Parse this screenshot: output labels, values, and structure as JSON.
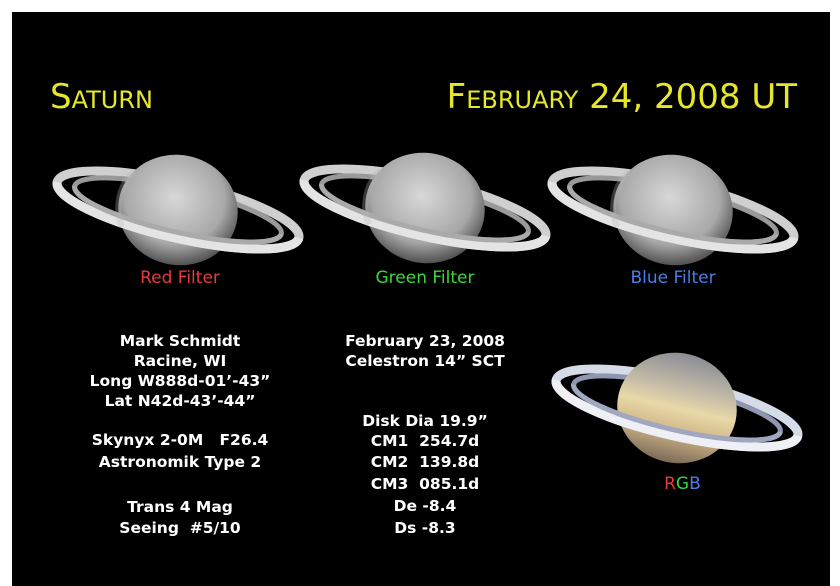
{
  "header": {
    "title": "Saturn",
    "date": "February 24, 2008 UT"
  },
  "filters": [
    "Red Filter",
    "Green Filter",
    "Blue Filter"
  ],
  "rgb_label": [
    "R",
    "G",
    "B"
  ],
  "observer": [
    "Mark Schmidt",
    "Racine, WI",
    "Long W888d-01’-43”",
    "Lat N42d-43’-44”",
    "Skynyx 2-0M   F26.4",
    "Astronomik Type 2",
    "Trans 4 Mag",
    "Seeing  #5/10"
  ],
  "observation": [
    "February 23, 2008",
    "Celestron 14” SCT",
    "Disk Dia 19.9”",
    "CM1  254.7d",
    "CM2  139.8d",
    "CM3  085.1d",
    "De -8.4",
    "Ds -8.3"
  ]
}
